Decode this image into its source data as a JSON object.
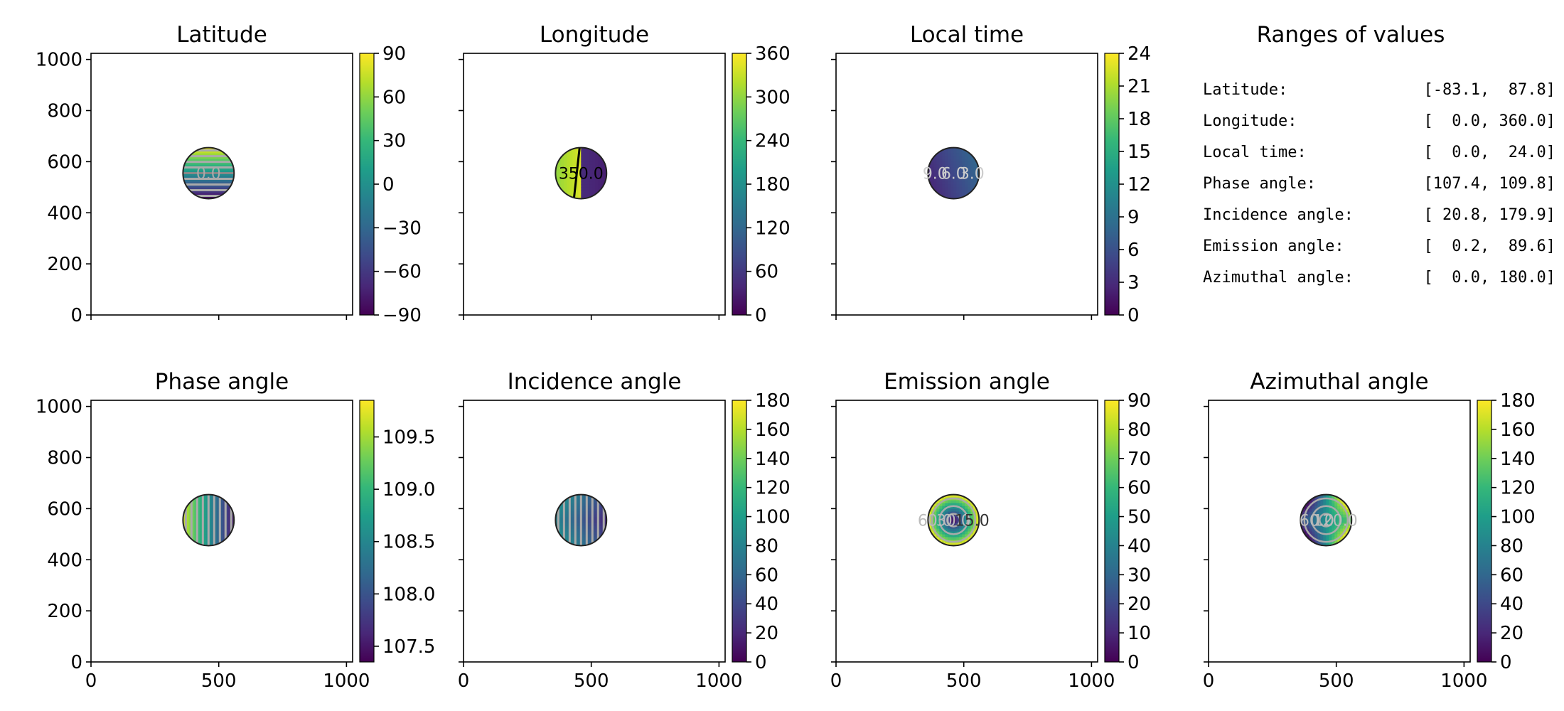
{
  "figure": {
    "colormap": [
      "#440154",
      "#482878",
      "#3e4989",
      "#31688e",
      "#26828e",
      "#1f9e89",
      "#35b779",
      "#6ece58",
      "#b5de2b",
      "#fde725"
    ],
    "panel_bg": "#ffffff",
    "axis_color": "#000000"
  },
  "chart_data": [
    {
      "type": "heatmap",
      "title": "Latitude",
      "xlim": [
        0,
        1024
      ],
      "ylim": [
        0,
        1024
      ],
      "xticks": [
        0,
        500,
        1000
      ],
      "yticks": [
        0,
        200,
        400,
        600,
        800,
        1000
      ],
      "show_x_ticklabels": false,
      "show_y_ticklabels": true,
      "disk": {
        "cx": 460,
        "cy": 555,
        "r": 100
      },
      "field": "latitude",
      "contour_labels": [
        {
          "text": "0.0",
          "color": "#aaaaaa"
        }
      ],
      "colorbar": {
        "min": -90,
        "max": 90,
        "ticks": [
          -90,
          -60,
          -30,
          0,
          30,
          60,
          90
        ],
        "ticklabels": [
          "−90",
          "−60",
          "−30",
          "0",
          "30",
          "60",
          "90"
        ]
      }
    },
    {
      "type": "heatmap",
      "title": "Longitude",
      "xlim": [
        0,
        1024
      ],
      "ylim": [
        0,
        1024
      ],
      "xticks": [
        0,
        500,
        1000
      ],
      "yticks": [
        0,
        200,
        400,
        600,
        800,
        1000
      ],
      "show_x_ticklabels": false,
      "show_y_ticklabels": false,
      "disk": {
        "cx": 460,
        "cy": 555,
        "r": 100
      },
      "field": "longitude",
      "contour_labels": [
        {
          "text": "350.0",
          "color": "#000000"
        }
      ],
      "colorbar": {
        "min": 0,
        "max": 360,
        "ticks": [
          0,
          60,
          120,
          180,
          240,
          300,
          360
        ],
        "ticklabels": [
          "0",
          "60",
          "120",
          "180",
          "240",
          "300",
          "360"
        ]
      }
    },
    {
      "type": "heatmap",
      "title": "Local time",
      "xlim": [
        0,
        1024
      ],
      "ylim": [
        0,
        1024
      ],
      "xticks": [
        0,
        500,
        1000
      ],
      "yticks": [
        0,
        200,
        400,
        600,
        800,
        1000
      ],
      "show_x_ticklabels": false,
      "show_y_ticklabels": false,
      "disk": {
        "cx": 460,
        "cy": 555,
        "r": 100
      },
      "field": "localtime",
      "contour_labels": [
        {
          "text": "9.0",
          "color": "#cccccc"
        },
        {
          "text": "6.0",
          "color": "#cccccc"
        },
        {
          "text": "3.0",
          "color": "#cccccc"
        }
      ],
      "colorbar": {
        "min": 0,
        "max": 24,
        "ticks": [
          0,
          3,
          6,
          9,
          12,
          15,
          18,
          21,
          24
        ],
        "ticklabels": [
          "0",
          "3",
          "6",
          "9",
          "12",
          "15",
          "18",
          "21",
          "24"
        ]
      }
    },
    {
      "type": "table",
      "title": "Ranges of values",
      "rows": [
        {
          "label": "Latitude:",
          "range": "[-83.1,  87.8]"
        },
        {
          "label": "Longitude:",
          "range": "[  0.0, 360.0]"
        },
        {
          "label": "Local time:",
          "range": "[  0.0,  24.0]"
        },
        {
          "label": "Phase angle:",
          "range": "[107.4, 109.8]"
        },
        {
          "label": "Incidence angle:",
          "range": "[ 20.8, 179.9]"
        },
        {
          "label": "Emission angle:",
          "range": "[  0.2,  89.6]"
        },
        {
          "label": "Azimuthal angle:",
          "range": "[  0.0, 180.0]"
        }
      ]
    },
    {
      "type": "heatmap",
      "title": "Phase angle",
      "xlim": [
        0,
        1024
      ],
      "ylim": [
        0,
        1024
      ],
      "xticks": [
        0,
        500,
        1000
      ],
      "yticks": [
        0,
        200,
        400,
        600,
        800,
        1000
      ],
      "show_x_ticklabels": true,
      "show_y_ticklabels": true,
      "disk": {
        "cx": 460,
        "cy": 555,
        "r": 100
      },
      "field": "phase",
      "contour_labels": [],
      "colorbar": {
        "min": 107.35,
        "max": 109.85,
        "ticks": [
          107.5,
          108.0,
          108.5,
          109.0,
          109.5
        ],
        "ticklabels": [
          "107.5",
          "108.0",
          "108.5",
          "109.0",
          "109.5"
        ]
      }
    },
    {
      "type": "heatmap",
      "title": "Incidence angle",
      "xlim": [
        0,
        1024
      ],
      "ylim": [
        0,
        1024
      ],
      "xticks": [
        0,
        500,
        1000
      ],
      "yticks": [
        0,
        200,
        400,
        600,
        800,
        1000
      ],
      "show_x_ticklabels": true,
      "show_y_ticklabels": false,
      "disk": {
        "cx": 460,
        "cy": 555,
        "r": 100
      },
      "field": "incidence",
      "contour_labels": [],
      "colorbar": {
        "min": 0,
        "max": 180,
        "ticks": [
          0,
          20,
          40,
          60,
          80,
          100,
          120,
          140,
          160,
          180
        ],
        "ticklabels": [
          "0",
          "20",
          "40",
          "60",
          "80",
          "100",
          "120",
          "140",
          "160",
          "180"
        ]
      }
    },
    {
      "type": "heatmap",
      "title": "Emission angle",
      "xlim": [
        0,
        1024
      ],
      "ylim": [
        0,
        1024
      ],
      "xticks": [
        0,
        500,
        1000
      ],
      "yticks": [
        0,
        200,
        400,
        600,
        800,
        1000
      ],
      "show_x_ticklabels": true,
      "show_y_ticklabels": false,
      "disk": {
        "cx": 460,
        "cy": 555,
        "r": 100
      },
      "field": "emission",
      "contour_labels": [
        {
          "text": "60.0",
          "color": "#bbbbbb"
        },
        {
          "text": "30.0",
          "color": "#bbbbbb"
        },
        {
          "text": "15.0",
          "color": "#333333"
        }
      ],
      "colorbar": {
        "min": 0,
        "max": 90,
        "ticks": [
          0,
          10,
          20,
          30,
          40,
          50,
          60,
          70,
          80,
          90
        ],
        "ticklabels": [
          "0",
          "10",
          "20",
          "30",
          "40",
          "50",
          "60",
          "70",
          "80",
          "90"
        ]
      }
    },
    {
      "type": "heatmap",
      "title": "Azimuthal angle",
      "xlim": [
        0,
        1024
      ],
      "ylim": [
        0,
        1024
      ],
      "xticks": [
        0,
        500,
        1000
      ],
      "yticks": [
        0,
        200,
        400,
        600,
        800,
        1000
      ],
      "show_x_ticklabels": true,
      "show_y_ticklabels": false,
      "disk": {
        "cx": 460,
        "cy": 555,
        "r": 100
      },
      "field": "azimuth",
      "contour_labels": [
        {
          "text": "60.0",
          "color": "#bbbbbb"
        },
        {
          "text": "120.0",
          "color": "#bbbbbb"
        }
      ],
      "colorbar": {
        "min": 0,
        "max": 180,
        "ticks": [
          0,
          20,
          40,
          60,
          80,
          100,
          120,
          140,
          160,
          180
        ],
        "ticklabels": [
          "0",
          "20",
          "40",
          "60",
          "80",
          "100",
          "120",
          "140",
          "160",
          "180"
        ]
      }
    }
  ]
}
